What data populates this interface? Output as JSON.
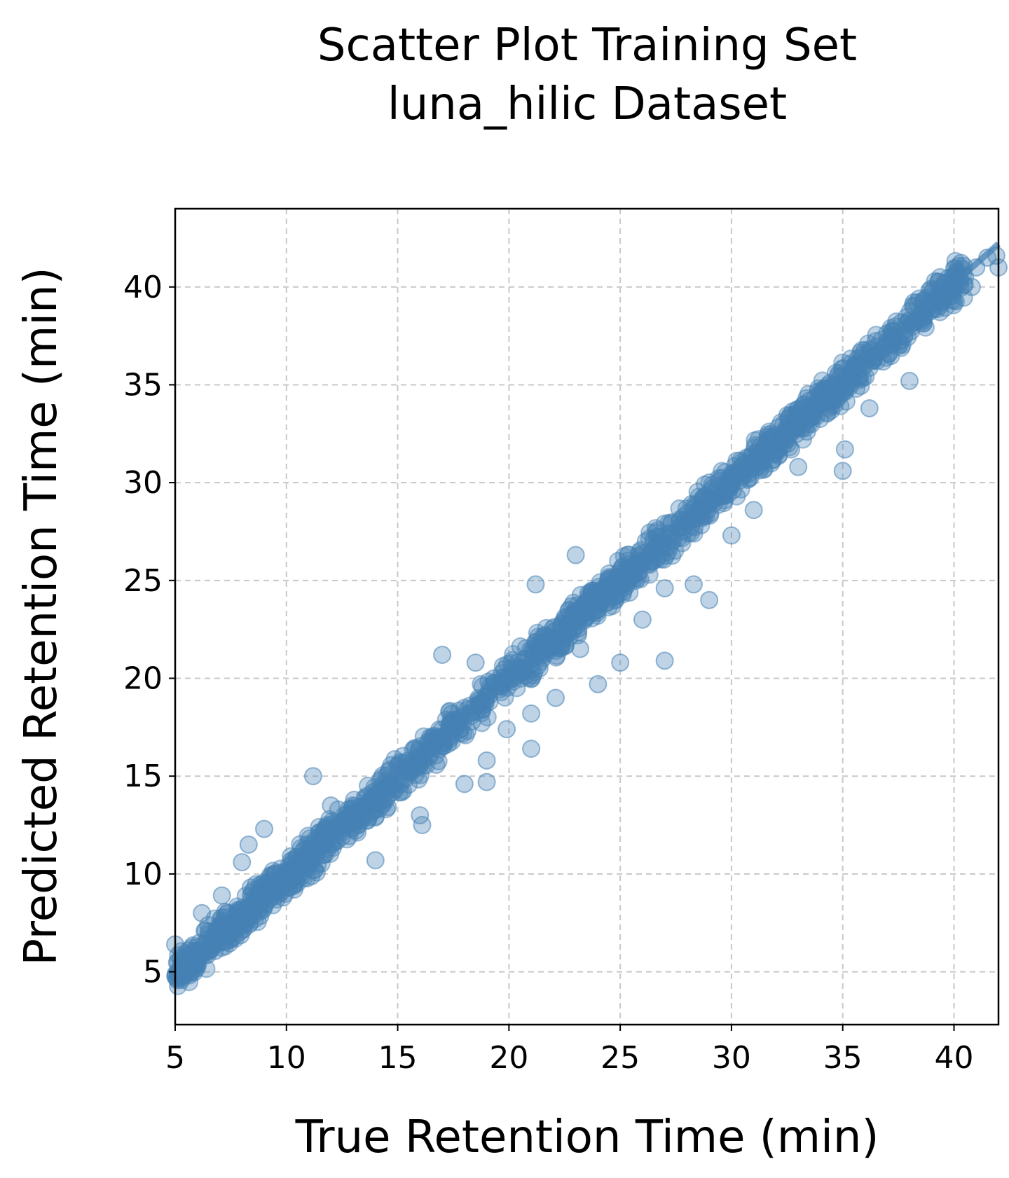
{
  "chart_data": {
    "type": "scatter",
    "title_line1": "Scatter Plot Training Set",
    "title_line2": "luna_hilic Dataset",
    "xlabel": "True Retention Time (min)",
    "ylabel": "Predicted Retention Time (min)",
    "xlim": [
      5,
      42
    ],
    "ylim": [
      2.3,
      44.0
    ],
    "xticks": [
      5,
      10,
      15,
      20,
      25,
      30,
      35,
      40
    ],
    "yticks": [
      5,
      10,
      15,
      20,
      25,
      30,
      35,
      40
    ],
    "grid": true,
    "point_color": "#4682b4",
    "point_alpha": 0.35,
    "fit_line": {
      "color": "#4682b4",
      "x": [
        5,
        42
      ],
      "y": [
        4.85,
        42.2
      ]
    },
    "points": {
      "x": [
        5.1,
        5.5,
        6.0,
        6.4,
        6.9,
        7.3,
        7.8,
        8.2,
        8.7,
        9.2,
        9.6,
        10.1,
        10.5,
        11.0,
        11.4,
        11.9,
        12.3,
        12.8,
        13.2,
        13.7,
        14.1,
        14.6,
        15.0,
        15.5,
        16.0,
        16.4,
        16.9,
        17.3,
        17.8,
        18.2,
        18.7,
        19.1,
        19.6,
        20.0,
        20.5,
        21.0,
        21.4,
        21.9,
        22.3,
        22.8,
        23.2,
        23.7,
        24.1,
        24.6,
        25.0,
        25.5,
        26.0,
        26.4,
        26.9,
        27.3,
        27.8,
        28.2,
        28.7,
        29.1,
        29.6,
        30.0,
        30.5,
        31.0,
        31.4,
        31.9,
        32.3,
        32.8,
        33.2,
        33.7,
        34.1,
        34.6,
        35.0,
        35.5,
        36.0,
        36.4,
        36.9,
        37.3,
        37.8,
        38.2,
        38.7,
        39.1,
        39.6,
        40.0,
        40.5,
        41.0,
        41.5,
        41.9,
        5.0,
        5.2,
        6.2,
        7.1,
        8.0,
        8.3,
        9.0,
        11.2,
        12.0,
        14.0,
        16.1,
        17.0,
        18.0,
        18.5,
        19.0,
        19.9,
        21.0,
        21.2,
        22.1,
        23.0,
        24.0,
        25.0,
        26.0,
        27.0,
        28.3,
        29.0,
        30.0,
        31.0,
        33.0,
        35.0,
        35.1,
        38.0,
        40.0,
        40.8,
        42.0,
        16.0,
        19.0,
        21.0,
        23.2,
        27.0,
        36.2
      ],
      "y": [
        5.0,
        5.5,
        6.0,
        6.4,
        6.9,
        7.3,
        7.8,
        8.2,
        8.7,
        9.2,
        9.6,
        10.1,
        10.5,
        11.0,
        11.4,
        11.9,
        12.3,
        12.8,
        13.2,
        13.7,
        14.1,
        14.6,
        15.0,
        15.5,
        16.0,
        16.4,
        16.9,
        17.3,
        17.8,
        18.2,
        18.7,
        19.1,
        19.6,
        20.0,
        20.5,
        21.0,
        21.4,
        21.9,
        22.3,
        22.8,
        23.2,
        23.7,
        24.1,
        24.6,
        25.0,
        25.5,
        26.0,
        26.4,
        26.9,
        27.3,
        27.8,
        28.2,
        28.7,
        29.1,
        29.6,
        30.0,
        30.5,
        31.0,
        31.4,
        31.9,
        32.3,
        32.8,
        33.2,
        33.7,
        34.1,
        34.6,
        35.0,
        35.5,
        36.0,
        36.4,
        36.9,
        37.3,
        37.8,
        38.2,
        38.7,
        39.1,
        39.6,
        40.0,
        40.5,
        41.0,
        41.5,
        41.6,
        6.4,
        4.7,
        8.0,
        8.9,
        10.6,
        11.5,
        12.3,
        15.0,
        13.5,
        10.7,
        12.5,
        21.2,
        14.6,
        20.8,
        14.7,
        17.4,
        16.4,
        24.8,
        19.0,
        26.3,
        19.7,
        20.8,
        23.0,
        20.9,
        24.8,
        24.0,
        27.3,
        28.6,
        30.8,
        30.6,
        31.7,
        35.2,
        39.3,
        40.0,
        41.0,
        13.0,
        15.8,
        18.2,
        21.5,
        24.6,
        33.8
      ]
    }
  }
}
